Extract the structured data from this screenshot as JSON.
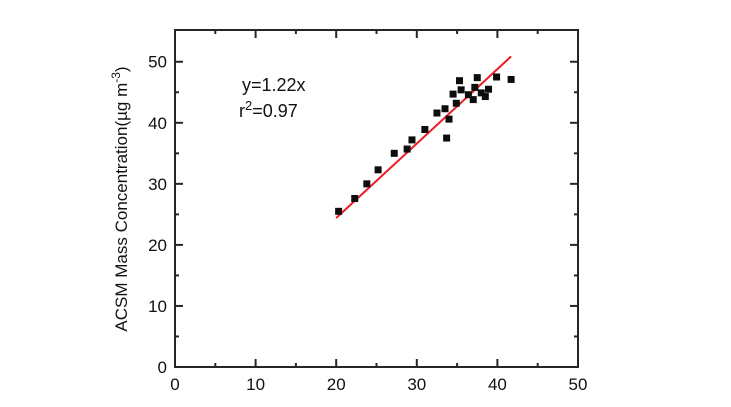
{
  "chart_data": {
    "type": "scatter",
    "title": "",
    "xlabel": "",
    "ylabel_parts": {
      "main": "ACSM Mass Concentration(µg m",
      "superscript": "-3",
      "suffix": ")"
    },
    "xlim": [
      0,
      50
    ],
    "ylim": [
      0,
      55.2
    ],
    "x_major_ticks": [
      0,
      10,
      20,
      30,
      40,
      50
    ],
    "x_minor_ticks": [
      5,
      15,
      25,
      35,
      45
    ],
    "y_major_ticks": [
      0,
      10,
      20,
      30,
      40,
      50
    ],
    "y_minor_ticks": [
      5,
      15,
      25,
      35,
      45
    ],
    "grid": false,
    "legend": null,
    "points": [
      [
        20.3,
        25.5
      ],
      [
        22.3,
        27.6
      ],
      [
        23.8,
        30.0
      ],
      [
        25.2,
        32.3
      ],
      [
        27.2,
        35.0
      ],
      [
        28.8,
        35.7
      ],
      [
        29.4,
        37.2
      ],
      [
        31.0,
        38.9
      ],
      [
        32.5,
        41.6
      ],
      [
        33.5,
        42.3
      ],
      [
        34.0,
        40.6
      ],
      [
        33.7,
        37.5
      ],
      [
        34.5,
        44.7
      ],
      [
        34.9,
        43.2
      ],
      [
        35.3,
        46.9
      ],
      [
        35.5,
        45.4
      ],
      [
        36.4,
        44.6
      ],
      [
        37.0,
        43.8
      ],
      [
        37.2,
        45.8
      ],
      [
        37.5,
        47.4
      ],
      [
        38.0,
        44.9
      ],
      [
        38.5,
        44.3
      ],
      [
        38.9,
        45.5
      ],
      [
        39.9,
        47.5
      ],
      [
        41.7,
        47.1
      ]
    ],
    "fit_line": {
      "equation": "y=1.22x",
      "slope": 1.22,
      "intercept": 0,
      "x_start": 20.0,
      "x_end": 41.7,
      "color": "#ed1c24",
      "width": 2
    },
    "annotation": {
      "line1": "y=1.22x",
      "line2_base": "r",
      "line2_superscript": "2",
      "line2_rest": "=0.97"
    },
    "marker": {
      "shape": "square",
      "size": 7,
      "color": "#0d0d0d"
    },
    "axis_color": "#262626",
    "background": "#ffffff"
  }
}
